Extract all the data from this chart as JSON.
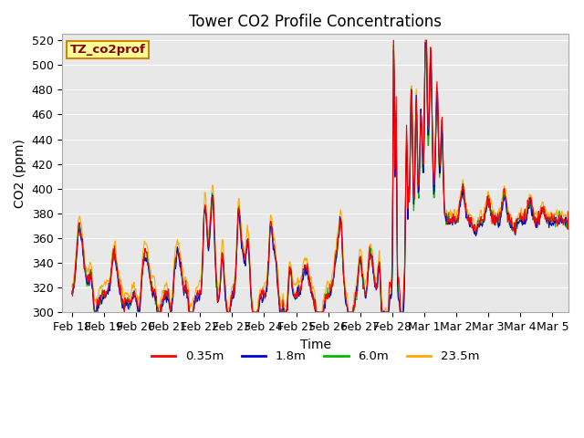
{
  "title": "Tower CO2 Profile Concentrations",
  "xlabel": "Time",
  "ylabel": "CO2 (ppm)",
  "ylim": [
    300,
    525
  ],
  "bg_color": "#e8e8e8",
  "series_colors": [
    "#ff0000",
    "#0000cc",
    "#00bb00",
    "#ffaa00"
  ],
  "series_labels": [
    "0.35m",
    "1.8m",
    "6.0m",
    "23.5m"
  ],
  "legend_box_label": "TZ_co2prof",
  "legend_box_bg": "#ffff99",
  "legend_box_edge": "#cc8800",
  "xtick_labels": [
    "Feb 18",
    "Feb 19",
    "Feb 20",
    "Feb 21",
    "Feb 22",
    "Feb 23",
    "Feb 24",
    "Feb 25",
    "Feb 26",
    "Feb 27",
    "Feb 28",
    "Mar 1",
    "Mar 2",
    "Mar 3",
    "Mar 4",
    "Mar 5"
  ],
  "xtick_positions": [
    0,
    1,
    2,
    3,
    4,
    5,
    6,
    7,
    8,
    9,
    10,
    11,
    12,
    13,
    14,
    15
  ],
  "fig_width": 6.4,
  "fig_height": 4.8,
  "dpi": 100
}
